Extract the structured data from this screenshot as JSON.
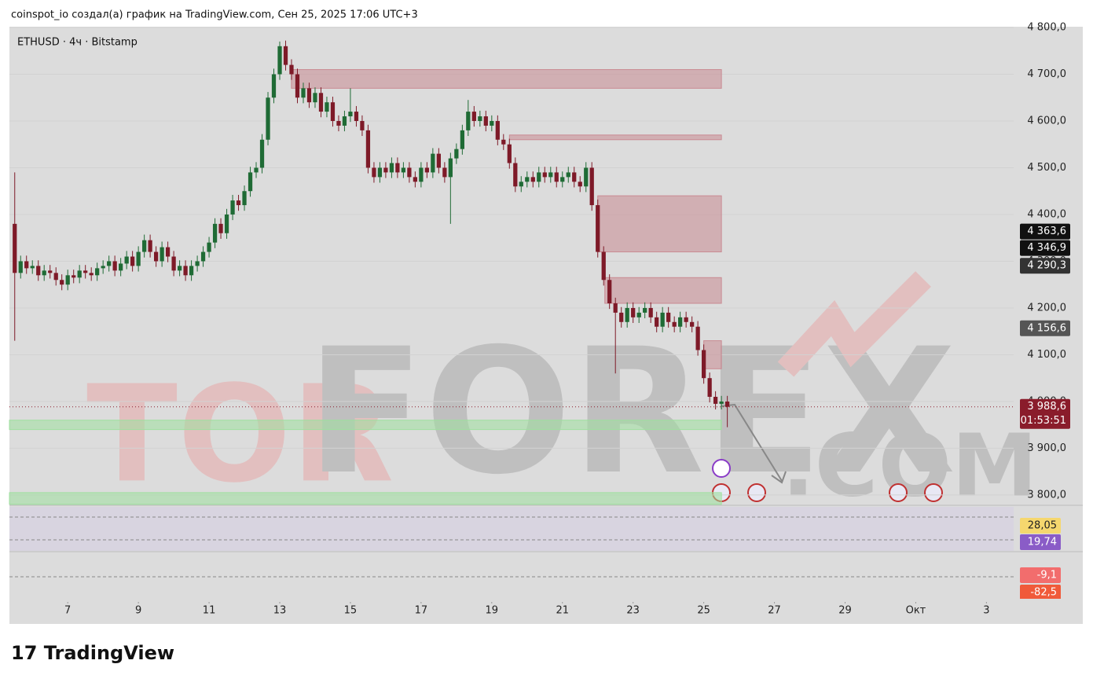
{
  "header": "coinspot_io создал(а) график на TradingView.com, Сен 25, 2025 17:06 UTC+3",
  "logo": "TradingView",
  "watermark": [
    "TOR",
    "FOREX",
    ".COM"
  ],
  "chart_data": {
    "type": "candlestick",
    "title": "ETHUSD · 4ч · Bitstamp",
    "x": [
      5.5,
      5.667,
      5.833,
      6,
      6.167,
      6.333,
      6.5,
      6.667,
      6.833,
      7,
      7.167,
      7.333,
      7.5,
      7.667,
      7.833,
      8,
      8.167,
      8.333,
      8.5,
      8.667,
      8.833,
      9,
      9.167,
      9.333,
      9.5,
      9.667,
      9.833,
      10,
      10.167,
      10.333,
      10.5,
      10.667,
      10.833,
      11,
      11.167,
      11.333,
      11.5,
      11.667,
      11.833,
      12,
      12.167,
      12.333,
      12.5,
      12.667,
      12.833,
      13,
      13.167,
      13.333,
      13.5,
      13.667,
      13.833,
      14,
      14.167,
      14.333,
      14.5,
      14.667,
      14.833,
      15,
      15.167,
      15.333,
      15.5,
      15.667,
      15.833,
      16,
      16.167,
      16.333,
      16.5,
      16.667,
      16.833,
      17,
      17.167,
      17.333,
      17.5,
      17.667,
      17.833,
      18,
      18.167,
      18.333,
      18.5,
      18.667,
      18.833,
      19,
      19.167,
      19.333,
      19.5,
      19.667,
      19.833,
      20,
      20.167,
      20.333,
      20.5,
      20.667,
      20.833,
      21,
      21.167,
      21.333,
      21.5,
      21.667,
      21.833,
      22,
      22.167,
      22.333,
      22.5,
      22.667,
      22.833,
      23,
      23.167,
      23.333,
      23.5,
      23.667,
      23.833,
      24,
      24.167,
      24.333,
      24.5,
      24.667,
      24.833,
      25,
      25.167,
      25.333,
      25.5,
      25.667
    ],
    "series": [
      {
        "open": [
          4380,
          4275,
          4300,
          4285,
          4290,
          4270,
          4280,
          4275,
          4260,
          4250,
          4270,
          4265,
          4280,
          4275,
          4270,
          4285,
          4290,
          4300,
          4280,
          4295,
          4310,
          4290,
          4320,
          4345,
          4320,
          4300,
          4330,
          4310,
          4280,
          4290,
          4270,
          4290,
          4300,
          4320,
          4340,
          4380,
          4360,
          4400,
          4430,
          4420,
          4450,
          4490,
          4500,
          4560,
          4650,
          4700,
          4760,
          4720,
          4700,
          4650,
          4670,
          4640,
          4660,
          4620,
          4640,
          4600,
          4590,
          4610,
          4620,
          4600,
          4580,
          4500,
          4480,
          4500,
          4490,
          4510,
          4490,
          4500,
          4480,
          4470,
          4500,
          4490,
          4530,
          4500,
          4480,
          4520,
          4540,
          4580,
          4620,
          4600,
          4610,
          4590,
          4600,
          4560,
          4550,
          4510,
          4460,
          4470,
          4480,
          4470,
          4490,
          4480,
          4490,
          4470,
          4480,
          4490,
          4470,
          4460,
          4500,
          4420,
          4320,
          4260,
          4210,
          4190,
          4170,
          4200,
          4180,
          4190,
          4200,
          4180,
          4160,
          4190,
          4170,
          4160,
          4180,
          4170,
          4160,
          4110,
          4050,
          4010,
          3995,
          4000
        ],
        "high": [
          4490,
          4312,
          4312,
          4302,
          4302,
          4292,
          4292,
          4287,
          4272,
          4282,
          4282,
          4292,
          4292,
          4287,
          4297,
          4302,
          4312,
          4312,
          4307,
          4322,
          4322,
          4332,
          4357,
          4357,
          4332,
          4342,
          4342,
          4322,
          4302,
          4302,
          4302,
          4312,
          4332,
          4352,
          4392,
          4392,
          4412,
          4442,
          4442,
          4462,
          4502,
          4512,
          4572,
          4662,
          4712,
          4770,
          4772,
          4732,
          4712,
          4682,
          4682,
          4672,
          4672,
          4652,
          4652,
          4612,
          4622,
          4670,
          4632,
          4612,
          4592,
          4512,
          4512,
          4512,
          4522,
          4522,
          4512,
          4512,
          4492,
          4512,
          4512,
          4542,
          4542,
          4512,
          4532,
          4552,
          4592,
          4645,
          4632,
          4622,
          4622,
          4612,
          4612,
          4572,
          4562,
          4522,
          4482,
          4492,
          4492,
          4502,
          4502,
          4502,
          4502,
          4492,
          4502,
          4502,
          4482,
          4512,
          4512,
          4432,
          4332,
          4272,
          4222,
          4202,
          4212,
          4212,
          4202,
          4212,
          4212,
          4192,
          4202,
          4202,
          4182,
          4192,
          4192,
          4182,
          4172,
          4122,
          4062,
          4022,
          4012,
          4012
        ],
        "low": [
          4130,
          4263,
          4273,
          4273,
          4258,
          4258,
          4263,
          4248,
          4238,
          4238,
          4253,
          4253,
          4263,
          4258,
          4258,
          4273,
          4278,
          4268,
          4268,
          4283,
          4278,
          4278,
          4308,
          4308,
          4288,
          4288,
          4298,
          4268,
          4268,
          4258,
          4258,
          4278,
          4288,
          4308,
          4328,
          4348,
          4348,
          4388,
          4408,
          4408,
          4438,
          4478,
          4488,
          4548,
          4638,
          4688,
          4708,
          4688,
          4638,
          4638,
          4628,
          4628,
          4608,
          4608,
          4588,
          4578,
          4578,
          4598,
          4588,
          4568,
          4488,
          4468,
          4468,
          4478,
          4478,
          4478,
          4478,
          4468,
          4458,
          4458,
          4478,
          4478,
          4488,
          4468,
          4380,
          4508,
          4528,
          4568,
          4588,
          4588,
          4578,
          4578,
          4548,
          4538,
          4498,
          4448,
          4448,
          4458,
          4458,
          4458,
          4468,
          4468,
          4458,
          4458,
          4468,
          4458,
          4448,
          4448,
          4408,
          4308,
          4248,
          4198,
          4060,
          4158,
          4158,
          4168,
          4168,
          4178,
          4168,
          4148,
          4148,
          4158,
          4148,
          4148,
          4158,
          4148,
          4098,
          4038,
          3998,
          3983,
          3983,
          3945
        ],
        "close": [
          4275,
          4300,
          4285,
          4290,
          4270,
          4280,
          4275,
          4260,
          4250,
          4270,
          4265,
          4280,
          4275,
          4270,
          4285,
          4290,
          4300,
          4280,
          4295,
          4310,
          4290,
          4320,
          4345,
          4320,
          4300,
          4330,
          4310,
          4280,
          4290,
          4270,
          4290,
          4300,
          4320,
          4340,
          4380,
          4360,
          4400,
          4430,
          4420,
          4450,
          4490,
          4500,
          4560,
          4650,
          4700,
          4760,
          4720,
          4700,
          4650,
          4670,
          4640,
          4660,
          4620,
          4640,
          4600,
          4590,
          4610,
          4620,
          4600,
          4580,
          4500,
          4480,
          4500,
          4490,
          4510,
          4490,
          4500,
          4480,
          4470,
          4500,
          4490,
          4530,
          4500,
          4480,
          4520,
          4540,
          4580,
          4620,
          4600,
          4610,
          4590,
          4600,
          4560,
          4550,
          4510,
          4460,
          4470,
          4480,
          4470,
          4490,
          4480,
          4490,
          4470,
          4480,
          4490,
          4470,
          4460,
          4500,
          4420,
          4320,
          4260,
          4210,
          4190,
          4170,
          4200,
          4180,
          4190,
          4200,
          4180,
          4160,
          4190,
          4170,
          4160,
          4180,
          4170,
          4160,
          4110,
          4050,
          4010,
          3995,
          4000,
          3988.6
        ]
      }
    ],
    "up_color": "#1f6b35",
    "down_color": "#7e1a28",
    "xlim": [
      5.35,
      33.77
    ],
    "ylim": [
      3778,
      4800
    ],
    "xticks": [
      7,
      9,
      11,
      13,
      15,
      17,
      19,
      21,
      23,
      25,
      27,
      29,
      {
        "value": 31,
        "label": "Окт"
      },
      {
        "value": 33,
        "label": "3"
      }
    ],
    "yticks": [
      {
        "value": 3800,
        "label": "3 800,0"
      },
      {
        "value": 3900,
        "label": "3 900,0"
      },
      {
        "value": 4000,
        "label": "4 000,0"
      },
      {
        "value": 4100,
        "label": "4 100,0"
      },
      {
        "value": 4200,
        "label": "4 200,0"
      },
      {
        "value": 4300,
        "label": "4 300,0"
      },
      {
        "value": 4400,
        "label": "4 400,0"
      },
      {
        "value": 4500,
        "label": "4 500,0"
      },
      {
        "value": 4600,
        "label": "4 600,0"
      },
      {
        "value": 4700,
        "label": "4 700,0"
      },
      {
        "value": 4800,
        "label": "4 800,0"
      }
    ],
    "zones": [
      {
        "x": [
          13.33,
          25.5
        ],
        "y": [
          4670,
          4710
        ],
        "color": "#c98a92"
      },
      {
        "x": [
          19.5,
          25.5
        ],
        "y": [
          4560,
          4570
        ],
        "color": "#c98a92"
      },
      {
        "x": [
          22,
          25.5
        ],
        "y": [
          4320,
          4440
        ],
        "color": "#c98a92"
      },
      {
        "x": [
          22.2,
          25.5
        ],
        "y": [
          4210,
          4265
        ],
        "color": "#c98a92"
      },
      {
        "x": [
          25,
          25.5
        ],
        "y": [
          4070,
          4130
        ],
        "color": "#c98a92"
      },
      {
        "x": [
          5.35,
          25.5
        ],
        "y": [
          3940,
          3960
        ],
        "color": "#9ee09e"
      },
      {
        "x": [
          5.35,
          25.5
        ],
        "y": [
          3780,
          3805
        ],
        "color": "#9ee09e"
      }
    ],
    "price_labels": [
      {
        "value": 4363.6,
        "label": "4 363,6",
        "color": "#111111"
      },
      {
        "value": 4346.9,
        "label": "4 346,9",
        "color": "#111111"
      },
      {
        "value": 4290.3,
        "label": "4 290,3",
        "color": "#333333"
      },
      {
        "value": 4156.6,
        "label": "4 156,6",
        "color": "#555555"
      },
      {
        "value": 3988.6,
        "label": "3 988,6",
        "color": "#8a1c2b",
        "countdown": "01:53:51"
      }
    ],
    "rsi_labels": [
      {
        "value": 28.05,
        "label": "28,05",
        "color": "#f5d76e"
      },
      {
        "value": 19.74,
        "label": "19,74",
        "color": "#8a5cc7"
      }
    ],
    "macd_labels": [
      {
        "value": -9.1,
        "label": "-9,1",
        "color": "#f26d6d"
      },
      {
        "value": -82.5,
        "label": "-82,5",
        "color": "#f05a3a"
      }
    ]
  }
}
